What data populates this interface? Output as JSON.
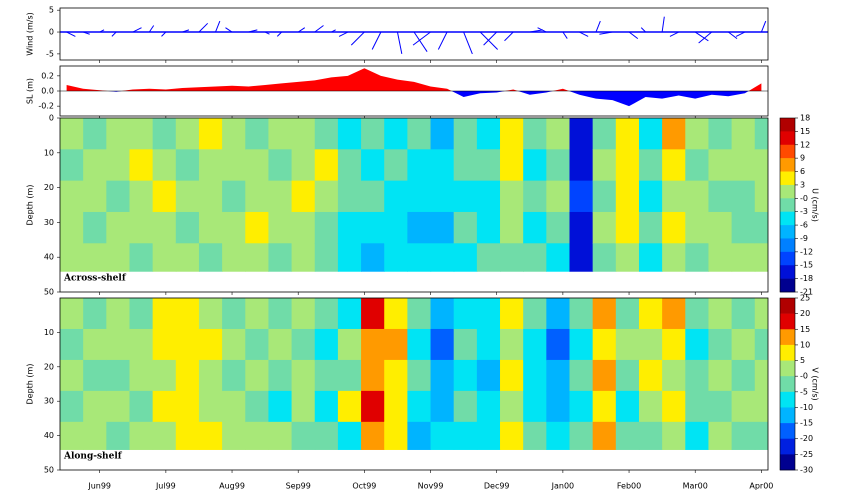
{
  "chart_data": [
    {
      "type": "stick",
      "ylabel": "Wind (m/s)",
      "xlim": [
        -0.6,
        10.1
      ],
      "ylim": [
        -6.4,
        5.5
      ],
      "yticks": [
        5,
        0,
        -5
      ],
      "color": "#0000ff",
      "x": [
        -0.5,
        -0.25,
        0,
        0.25,
        0.5,
        0.75,
        1,
        1.25,
        1.5,
        1.75,
        2,
        2.25,
        2.5,
        2.75,
        3,
        3.25,
        3.5,
        3.75,
        4,
        4.25,
        4.5,
        4.75,
        5,
        5.25,
        5.5,
        5.75,
        6,
        6.25,
        6.5,
        6.75,
        7,
        7.25,
        7.5,
        7.75,
        8,
        8.25,
        8.5,
        8.75,
        9,
        9.25,
        9.5,
        9.75,
        10
      ],
      "u": [
        2,
        1.5,
        1,
        -1,
        2,
        1,
        -1,
        1.5,
        2,
        1,
        -1.5,
        2,
        1,
        -1,
        1.5,
        2,
        1,
        -2,
        -3,
        -2,
        1,
        3,
        -4,
        -2,
        2,
        4,
        -3,
        -2,
        3,
        -2,
        1,
        2,
        1,
        -3,
        2,
        -1,
        0.5,
        -2,
        3,
        -3,
        2,
        -2,
        1
      ],
      "v": [
        -1,
        -0.5,
        0.5,
        -1,
        1,
        1.5,
        -1,
        0.5,
        2,
        2.5,
        1,
        0.5,
        -0.5,
        -1,
        1,
        1.5,
        0.5,
        -1,
        -3,
        -4,
        -5,
        -4.5,
        -3,
        -4,
        -5,
        -4,
        -3,
        -2,
        0.5,
        1,
        -1.5,
        -1,
        2.5,
        -0.5,
        -1.5,
        1,
        3.5,
        -1,
        -2,
        -2.5,
        -1.5,
        -1,
        2.5
      ]
    },
    {
      "type": "area",
      "ylabel": "SL (m)",
      "xlim": [
        -0.6,
        10.1
      ],
      "ylim": [
        -0.33,
        0.33
      ],
      "yticks": [
        0.2,
        {
          "value": 0,
          "label": "0.0"
        },
        -0.2
      ],
      "positive_color": "#ff0000",
      "negative_color": "#0000ff",
      "x": [
        -0.5,
        -0.25,
        0,
        0.25,
        0.5,
        0.75,
        1,
        1.25,
        1.5,
        1.75,
        2,
        2.25,
        2.5,
        2.75,
        3,
        3.25,
        3.5,
        3.75,
        4,
        4.25,
        4.5,
        4.75,
        5,
        5.25,
        5.5,
        5.75,
        6,
        6.25,
        6.5,
        6.75,
        7,
        7.25,
        7.5,
        7.75,
        8,
        8.25,
        8.5,
        8.75,
        9,
        9.25,
        9.5,
        9.75,
        10
      ],
      "values": [
        0.08,
        0.03,
        0.01,
        -0.01,
        0.02,
        0.03,
        0.02,
        0.04,
        0.05,
        0.06,
        0.07,
        0.06,
        0.08,
        0.1,
        0.12,
        0.14,
        0.18,
        0.2,
        0.3,
        0.2,
        0.15,
        0.12,
        0.06,
        0.03,
        -0.08,
        -0.03,
        -0.02,
        0.02,
        -0.05,
        -0.02,
        0.03,
        -0.05,
        -0.1,
        -0.12,
        -0.2,
        -0.08,
        -0.1,
        -0.06,
        -0.1,
        -0.05,
        -0.07,
        -0.03,
        0.1
      ]
    },
    {
      "type": "heatmap",
      "ylabel": "Depth (m)",
      "annotation": "Across-shelf",
      "colorbar_label": "U (cm/s)",
      "y_reversed": true,
      "xlim": [
        -0.6,
        10.1
      ],
      "ylim": [
        0,
        50
      ],
      "yticks": [
        0,
        10,
        20,
        30,
        40,
        50
      ],
      "cticks": [
        18,
        15,
        12,
        9,
        6,
        3,
        {
          "value": 0,
          "label": "-0"
        },
        -3,
        -6,
        -9,
        -12,
        -15,
        -18,
        -21
      ],
      "colors": [
        "#b00000",
        "#e00000",
        "#ff4a00",
        "#ff9a00",
        "#ffee00",
        "#a8e878",
        "#70dca8",
        "#00e4f4",
        "#00b4ff",
        "#0080ff",
        "#0044ff",
        "#0010d8",
        "#000090"
      ],
      "xbins": [
        -0.6,
        -0.25,
        0.1,
        0.45,
        0.8,
        1.15,
        1.5,
        1.85,
        2.2,
        2.55,
        2.9,
        3.25,
        3.6,
        3.95,
        4.3,
        4.65,
        5.0,
        5.35,
        5.7,
        6.05,
        6.4,
        6.75,
        7.1,
        7.45,
        7.8,
        8.15,
        8.5,
        8.85,
        9.2,
        9.55,
        9.9,
        10.25
      ],
      "ybins": [
        0,
        9,
        18,
        27,
        36,
        44
      ],
      "values": [
        [
          1.5,
          -1.5,
          1.5,
          1.5,
          1.5
        ],
        [
          -1.5,
          1.5,
          1.5,
          -1.5,
          1.5
        ],
        [
          1.5,
          1.5,
          -1.5,
          1.5,
          1.5
        ],
        [
          1.5,
          4,
          1.5,
          1.5,
          -1.5
        ],
        [
          -1.5,
          1.5,
          4,
          1.5,
          1.5
        ],
        [
          1.5,
          -1.5,
          1.5,
          -1.5,
          1.5
        ],
        [
          4,
          1.5,
          1.5,
          1.5,
          -1.5
        ],
        [
          1.5,
          1.5,
          -1.5,
          1.5,
          1.5
        ],
        [
          -1.5,
          1.5,
          1.5,
          4,
          1.5
        ],
        [
          1.5,
          -1.5,
          1.5,
          1.5,
          -1.5
        ],
        [
          1.5,
          1.5,
          4,
          1.5,
          1.5
        ],
        [
          -1.5,
          4,
          1.5,
          -1.5,
          -1.5
        ],
        [
          -4,
          -1.5,
          -1.5,
          -4,
          -4
        ],
        [
          -1.5,
          -4,
          -1.5,
          -4,
          -7
        ],
        [
          -4,
          -1.5,
          -4,
          -4,
          -4
        ],
        [
          -1.5,
          -4,
          -4,
          -7,
          -4
        ],
        [
          -7,
          -4,
          -4,
          -7,
          -4
        ],
        [
          -1.5,
          -1.5,
          -4,
          -1.5,
          -4
        ],
        [
          -4,
          -1.5,
          -4,
          -4,
          -1.5
        ],
        [
          4,
          4,
          1.5,
          1.5,
          -1.5
        ],
        [
          -1.5,
          -4,
          -1.5,
          -4,
          -1.5
        ],
        [
          1.5,
          -1.5,
          1.5,
          -1.5,
          -4
        ],
        [
          -16,
          -16,
          -13,
          -16,
          -16
        ],
        [
          -1.5,
          1.5,
          -1.5,
          1.5,
          -1.5
        ],
        [
          4,
          4,
          4,
          4,
          1.5
        ],
        [
          -4,
          -1.5,
          -4,
          -1.5,
          -4
        ],
        [
          7,
          4,
          1.5,
          4,
          1.5
        ],
        [
          1.5,
          -1.5,
          1.5,
          1.5,
          -1.5
        ],
        [
          -1.5,
          1.5,
          -1.5,
          1.5,
          1.5
        ],
        [
          1.5,
          1.5,
          -1.5,
          -1.5,
          1.5
        ],
        [
          -1.5,
          1.5,
          1.5,
          -1.5,
          1.5
        ]
      ]
    },
    {
      "type": "heatmap",
      "ylabel": "Depth (m)",
      "annotation": "Along-shelf",
      "colorbar_label": "V (cm/s)",
      "y_reversed": true,
      "xlim": [
        -0.6,
        10.1
      ],
      "ylim": [
        0,
        50
      ],
      "yticks": [
        10,
        20,
        30,
        40,
        50
      ],
      "cticks": [
        25,
        20,
        15,
        10,
        5,
        {
          "value": 0,
          "label": "-0"
        },
        -5,
        -10,
        -15,
        -20,
        -25,
        -30
      ],
      "colors": [
        "#b00000",
        "#e00000",
        "#ff9a00",
        "#ffee00",
        "#a8e878",
        "#70dca8",
        "#00e4f4",
        "#00b4ff",
        "#0060ff",
        "#0020e0",
        "#000090"
      ],
      "xbins": [
        -0.6,
        -0.25,
        0.1,
        0.45,
        0.8,
        1.15,
        1.5,
        1.85,
        2.2,
        2.55,
        2.9,
        3.25,
        3.6,
        3.95,
        4.3,
        4.65,
        5.0,
        5.35,
        5.7,
        6.05,
        6.4,
        6.75,
        7.1,
        7.45,
        7.8,
        8.15,
        8.5,
        8.85,
        9.2,
        9.55,
        9.9,
        10.25
      ],
      "ybins": [
        0,
        9,
        18,
        27,
        36,
        44
      ],
      "values": [
        [
          2.5,
          -2.5,
          2.5,
          -2.5,
          2.5
        ],
        [
          -2.5,
          2.5,
          -2.5,
          2.5,
          2.5
        ],
        [
          2.5,
          2.5,
          -2.5,
          2.5,
          -2.5
        ],
        [
          -2.5,
          2.5,
          2.5,
          -2.5,
          2.5
        ],
        [
          7.5,
          7.5,
          2.5,
          7.5,
          2.5
        ],
        [
          7.5,
          7.5,
          7.5,
          7.5,
          7.5
        ],
        [
          2.5,
          7.5,
          2.5,
          2.5,
          7.5
        ],
        [
          -2.5,
          2.5,
          -2.5,
          2.5,
          2.5
        ],
        [
          2.5,
          -2.5,
          2.5,
          -2.5,
          2.5
        ],
        [
          -2.5,
          2.5,
          -2.5,
          -7.5,
          2.5
        ],
        [
          2.5,
          -2.5,
          2.5,
          2.5,
          -2.5
        ],
        [
          -2.5,
          -7.5,
          -2.5,
          -7.5,
          -2.5
        ],
        [
          -7.5,
          2.5,
          -2.5,
          7.5,
          -7.5
        ],
        [
          17.5,
          12.5,
          12.5,
          17.5,
          12.5
        ],
        [
          7.5,
          12.5,
          7.5,
          7.5,
          7.5
        ],
        [
          -2.5,
          -7.5,
          -2.5,
          -7.5,
          -12.5
        ],
        [
          -12.5,
          -17.5,
          -12.5,
          -12.5,
          -7.5
        ],
        [
          -7.5,
          -2.5,
          -7.5,
          -2.5,
          -7.5
        ],
        [
          -7.5,
          -7.5,
          -12.5,
          -7.5,
          -7.5
        ],
        [
          7.5,
          2.5,
          7.5,
          2.5,
          7.5
        ],
        [
          -2.5,
          -7.5,
          -7.5,
          -7.5,
          -2.5
        ],
        [
          -12.5,
          -17.5,
          -12.5,
          -12.5,
          -7.5
        ],
        [
          -2.5,
          -7.5,
          -2.5,
          -7.5,
          -2.5
        ],
        [
          12.5,
          7.5,
          12.5,
          7.5,
          12.5
        ],
        [
          -2.5,
          2.5,
          -2.5,
          -7.5,
          -2.5
        ],
        [
          7.5,
          2.5,
          7.5,
          2.5,
          -2.5
        ],
        [
          12.5,
          7.5,
          2.5,
          7.5,
          2.5
        ],
        [
          -2.5,
          -7.5,
          -2.5,
          -2.5,
          -7.5
        ],
        [
          2.5,
          -2.5,
          2.5,
          -2.5,
          2.5
        ],
        [
          -2.5,
          2.5,
          -2.5,
          2.5,
          -2.5
        ],
        [
          2.5,
          -2.5,
          2.5,
          2.5,
          -2.5
        ]
      ],
      "xticks": [
        {
          "value": 0,
          "label": "Jun99"
        },
        {
          "value": 1,
          "label": "Jul99"
        },
        {
          "value": 2,
          "label": "Aug99"
        },
        {
          "value": 3,
          "label": "Sep99"
        },
        {
          "value": 4,
          "label": "Oct99"
        },
        {
          "value": 5,
          "label": "Nov99"
        },
        {
          "value": 6,
          "label": "Dec99"
        },
        {
          "value": 7,
          "label": "Jan00"
        },
        {
          "value": 8,
          "label": "Feb00"
        },
        {
          "value": 9,
          "label": "Mar00"
        },
        {
          "value": 10,
          "label": "Apr00"
        }
      ]
    }
  ]
}
